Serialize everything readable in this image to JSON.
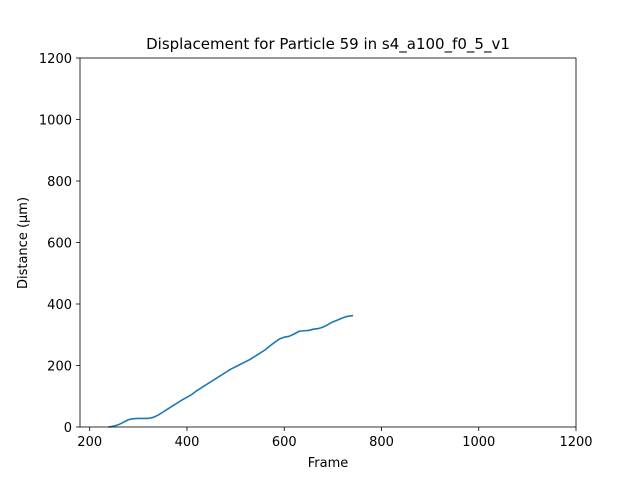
{
  "chart_data": {
    "type": "line",
    "title": "Displacement for Particle 59 in s4_a100_f0_5_v1",
    "xlabel": "Frame",
    "ylabel": "Distance (µm)",
    "xlim": [
      180,
      1200
    ],
    "ylim": [
      0,
      1200
    ],
    "xticks": [
      200,
      400,
      600,
      800,
      1000,
      1200
    ],
    "yticks": [
      0,
      200,
      400,
      600,
      800,
      1000,
      1200
    ],
    "grid": false,
    "series": [
      {
        "color": "#1f77b4",
        "x": [
          240,
          250,
          260,
          270,
          280,
          290,
          300,
          310,
          320,
          330,
          340,
          350,
          360,
          370,
          380,
          390,
          400,
          410,
          420,
          430,
          440,
          450,
          460,
          470,
          480,
          490,
          500,
          510,
          520,
          530,
          540,
          550,
          560,
          570,
          580,
          590,
          600,
          610,
          620,
          630,
          640,
          650,
          660,
          670,
          680,
          690,
          700,
          710,
          720,
          730,
          740
        ],
        "y": [
          0,
          3,
          8,
          16,
          24,
          27,
          28,
          28,
          28,
          31,
          38,
          48,
          58,
          68,
          78,
          88,
          97,
          106,
          118,
          128,
          138,
          148,
          158,
          168,
          178,
          188,
          196,
          204,
          212,
          220,
          230,
          240,
          250,
          263,
          275,
          286,
          292,
          295,
          302,
          311,
          313,
          314,
          318,
          320,
          325,
          333,
          342,
          348,
          355,
          360,
          362
        ]
      }
    ]
  }
}
